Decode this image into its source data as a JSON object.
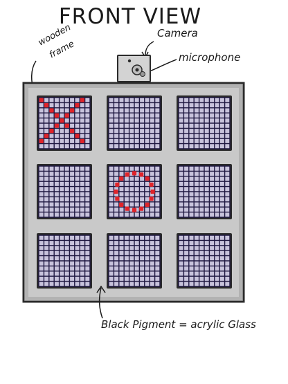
{
  "title": "FRONT VIEW",
  "labels": {
    "camera": "Camera",
    "microphone": "microphone",
    "wooden_frame_line1": "wooden",
    "wooden_frame_line2": "frame",
    "pigment_note": "Black Pigment = acrylic Glass"
  },
  "board": {
    "rows": 3,
    "cols": 3,
    "cell_grid_lines": 10,
    "cells": [
      {
        "row": 0,
        "col": 0,
        "mark": "X"
      },
      {
        "row": 0,
        "col": 1,
        "mark": ""
      },
      {
        "row": 0,
        "col": 2,
        "mark": ""
      },
      {
        "row": 1,
        "col": 0,
        "mark": ""
      },
      {
        "row": 1,
        "col": 1,
        "mark": "O"
      },
      {
        "row": 1,
        "col": 2,
        "mark": ""
      },
      {
        "row": 2,
        "col": 0,
        "mark": ""
      },
      {
        "row": 2,
        "col": 1,
        "mark": ""
      },
      {
        "row": 2,
        "col": 2,
        "mark": ""
      }
    ]
  },
  "colors": {
    "frame_fill": "#c9c9c9",
    "frame_outline": "#2a2a2a",
    "grid_fill": "#c8c3dc",
    "grid_line": "#1e1740",
    "led_red": "#e0242a",
    "ink": "#1a1a1a"
  }
}
